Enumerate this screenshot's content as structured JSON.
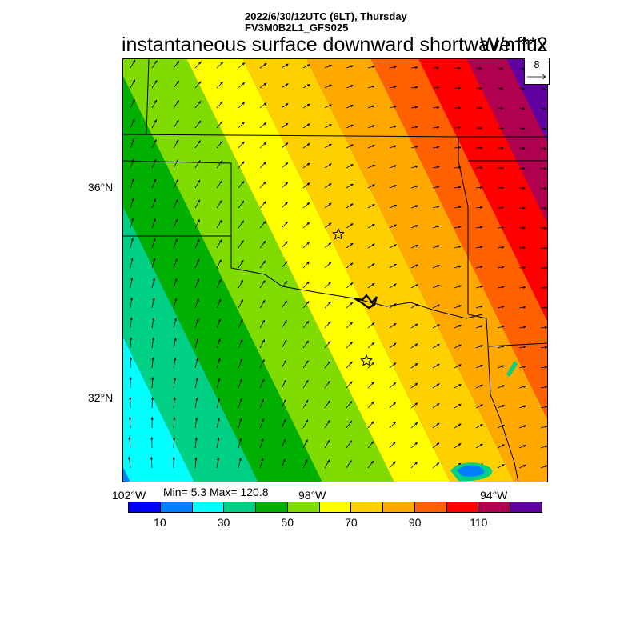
{
  "header": {
    "datetime": "2022/6/30/12UTC (6LT), Thursday",
    "model": "FV3M0B2L1_GFS025"
  },
  "title": "instantaneous surface downward shortwave flux",
  "units": "W/m**2",
  "reference_vector": {
    "value": "8"
  },
  "lat_labels": [
    "36°N",
    "32°N"
  ],
  "lon_labels": [
    "102°W",
    "98°W",
    "94°W"
  ],
  "stats": "Min= 5.3 Max= 120.8",
  "colorbar": {
    "colors": [
      "#0000ff",
      "#0080ff",
      "#00ffff",
      "#00d084",
      "#00b000",
      "#80dc00",
      "#ffff00",
      "#ffd000",
      "#ffa800",
      "#ff6000",
      "#ff0000",
      "#b00050",
      "#6000a0"
    ],
    "labels": [
      "10",
      "30",
      "50",
      "70",
      "90",
      "110"
    ]
  },
  "map": {
    "markers": [
      "star",
      "star"
    ],
    "shading_range": [
      5.3,
      120.8
    ]
  }
}
